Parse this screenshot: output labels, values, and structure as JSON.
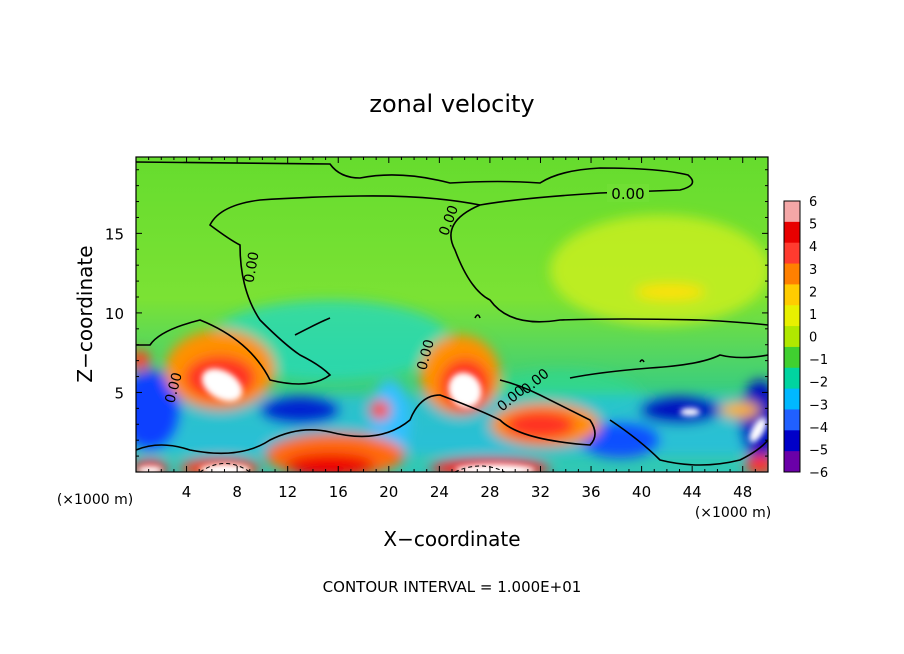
{
  "chart_data": {
    "type": "heatmap",
    "title": "zonal velocity",
    "xlabel": "X−coordinate",
    "ylabel": "Z−coordinate",
    "x_unit_left": "(×1000 m)",
    "x_unit_right": "(×1000 m)",
    "footer": "CONTOUR INTERVAL = 1.000E+01",
    "xlim": [
      0,
      50
    ],
    "ylim": [
      0,
      19.8
    ],
    "x_ticks": [
      "4",
      "8",
      "12",
      "16",
      "20",
      "24",
      "28",
      "32",
      "36",
      "40",
      "44",
      "48"
    ],
    "y_ticks": [
      "5",
      "10",
      "15"
    ],
    "contour_labels": [
      "0.00",
      "0.00",
      "0.00",
      "0.00",
      "0.00",
      "0.00",
      "0.00"
    ],
    "colorbar": {
      "range": [
        -6,
        6
      ],
      "ticks": [
        "6",
        "5",
        "4",
        "3",
        "2",
        "1",
        "0",
        "−1",
        "−2",
        "−3",
        "−4",
        "−5",
        "−6"
      ],
      "colors": [
        "#f4a7a7",
        "#e80000",
        "#ff3b2f",
        "#ff8000",
        "#ffcc00",
        "#e8f000",
        "#b0e800",
        "#40d030",
        "#00d4a0",
        "#00b8ff",
        "#2060ff",
        "#0000c8",
        "#6a00a8"
      ]
    },
    "features": [
      {
        "x": 6.5,
        "z": 5.5,
        "value": 8,
        "note": "positive core"
      },
      {
        "x": 26,
        "z": 5.5,
        "value": 8,
        "note": "positive core"
      },
      {
        "x": 30.5,
        "z": 3,
        "value": 4
      },
      {
        "x": 17,
        "z": 1.5,
        "value": 4
      },
      {
        "x": 13,
        "z": 4,
        "value": -5
      },
      {
        "x": 43,
        "z": 4,
        "value": -5
      },
      {
        "x": 44,
        "z": 11.5,
        "value": 2
      }
    ]
  }
}
